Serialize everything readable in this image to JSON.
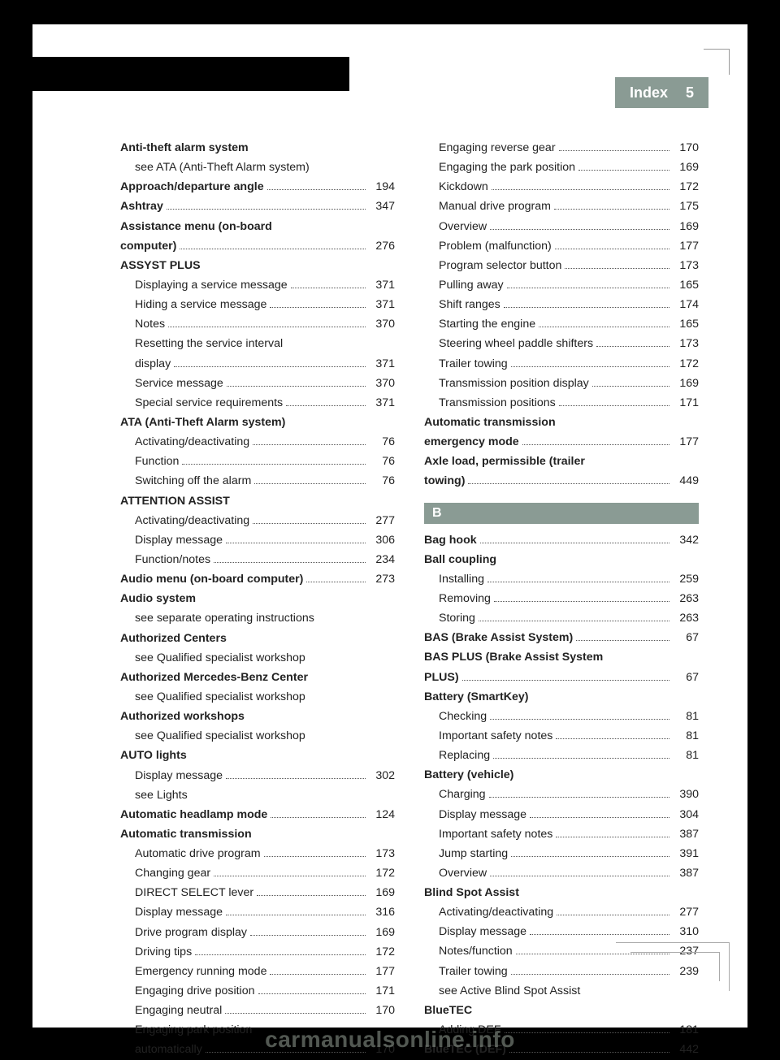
{
  "header": {
    "title": "Index",
    "page_number": "5"
  },
  "section_letter": "B",
  "watermark": "carmanualsonline.info",
  "colors": {
    "tab_bg": "#8a9b94",
    "tab_fg": "#ffffff",
    "page_bg": "#ffffff",
    "outer_bg": "#000000",
    "text": "#222222",
    "dots": "#555555",
    "corner": "#999999"
  },
  "left_column": [
    {
      "label": "Anti-theft alarm system",
      "bold": true
    },
    {
      "label": "see ATA (Anti-Theft Alarm system)",
      "indent": true
    },
    {
      "label": "Approach/departure angle",
      "bold": true,
      "page": "194"
    },
    {
      "label": "Ashtray",
      "bold": true,
      "page": "347"
    },
    {
      "label": "Assistance menu (on-board",
      "bold": true,
      "nowrap": true
    },
    {
      "label": "computer)",
      "bold": true,
      "page": "276"
    },
    {
      "label": "ASSYST PLUS",
      "bold": true
    },
    {
      "label": "Displaying a service message",
      "indent": true,
      "page": "371"
    },
    {
      "label": "Hiding a service message",
      "indent": true,
      "page": "371"
    },
    {
      "label": "Notes",
      "indent": true,
      "page": "370"
    },
    {
      "label": "Resetting the service interval",
      "indent": true,
      "nowrap": true
    },
    {
      "label": "display",
      "indent": true,
      "page": "371"
    },
    {
      "label": "Service message",
      "indent": true,
      "page": "370"
    },
    {
      "label": "Special service requirements",
      "indent": true,
      "page": "371"
    },
    {
      "label": "ATA (Anti-Theft Alarm system)",
      "bold": true
    },
    {
      "label": "Activating/deactivating",
      "indent": true,
      "page": "76"
    },
    {
      "label": "Function",
      "indent": true,
      "page": "76"
    },
    {
      "label": "Switching off the alarm",
      "indent": true,
      "page": "76"
    },
    {
      "label": "ATTENTION ASSIST",
      "bold": true
    },
    {
      "label": "Activating/deactivating",
      "indent": true,
      "page": "277"
    },
    {
      "label": "Display message",
      "indent": true,
      "page": "306"
    },
    {
      "label": "Function/notes",
      "indent": true,
      "page": "234"
    },
    {
      "label": "Audio menu (on-board computer)",
      "bold": true,
      "page": "273"
    },
    {
      "label": "Audio system",
      "bold": true
    },
    {
      "label": "see separate operating instructions",
      "indent": true
    },
    {
      "label": "Authorized Centers",
      "bold": true
    },
    {
      "label": "see Qualified specialist workshop",
      "indent": true
    },
    {
      "label": "Authorized Mercedes-Benz Center",
      "bold": true
    },
    {
      "label": "see Qualified specialist workshop",
      "indent": true
    },
    {
      "label": "Authorized workshops",
      "bold": true
    },
    {
      "label": "see Qualified specialist workshop",
      "indent": true
    },
    {
      "label": "AUTO lights",
      "bold": true
    },
    {
      "label": "Display message",
      "indent": true,
      "page": "302"
    },
    {
      "label": "see Lights",
      "indent": true
    },
    {
      "label": "Automatic headlamp mode",
      "bold": true,
      "page": "124"
    },
    {
      "label": "Automatic transmission",
      "bold": true
    },
    {
      "label": "Automatic drive program",
      "indent": true,
      "page": "173"
    },
    {
      "label": "Changing gear",
      "indent": true,
      "page": "172"
    },
    {
      "label": "DIRECT SELECT lever",
      "indent": true,
      "page": "169"
    },
    {
      "label": "Display message",
      "indent": true,
      "page": "316"
    },
    {
      "label": "Drive program display",
      "indent": true,
      "page": "169"
    },
    {
      "label": "Driving tips",
      "indent": true,
      "page": "172"
    },
    {
      "label": "Emergency running mode",
      "indent": true,
      "page": "177"
    },
    {
      "label": "Engaging drive position",
      "indent": true,
      "page": "171"
    },
    {
      "label": "Engaging neutral",
      "indent": true,
      "page": "170"
    },
    {
      "label": "Engaging park position",
      "indent": true,
      "nowrap": true
    },
    {
      "label": "automatically",
      "indent": true,
      "page": "170"
    }
  ],
  "right_column_a": [
    {
      "label": "Engaging reverse gear",
      "indent": true,
      "page": "170"
    },
    {
      "label": "Engaging the park position",
      "indent": true,
      "page": "169"
    },
    {
      "label": "Kickdown",
      "indent": true,
      "page": "172"
    },
    {
      "label": "Manual drive program",
      "indent": true,
      "page": "175"
    },
    {
      "label": "Overview",
      "indent": true,
      "page": "169"
    },
    {
      "label": "Problem (malfunction)",
      "indent": true,
      "page": "177"
    },
    {
      "label": "Program selector button",
      "indent": true,
      "page": "173"
    },
    {
      "label": "Pulling away",
      "indent": true,
      "page": "165"
    },
    {
      "label": "Shift ranges",
      "indent": true,
      "page": "174"
    },
    {
      "label": "Starting the engine",
      "indent": true,
      "page": "165"
    },
    {
      "label": "Steering wheel paddle shifters",
      "indent": true,
      "page": "173"
    },
    {
      "label": "Trailer towing",
      "indent": true,
      "page": "172"
    },
    {
      "label": "Transmission position display",
      "indent": true,
      "page": "169"
    },
    {
      "label": "Transmission positions",
      "indent": true,
      "page": "171"
    },
    {
      "label": "Automatic transmission",
      "bold": true,
      "nowrap": true
    },
    {
      "label": "emergency mode",
      "bold": true,
      "page": "177"
    },
    {
      "label": "Axle load, permissible (trailer",
      "bold": true,
      "nowrap": true
    },
    {
      "label": "towing)",
      "bold": true,
      "page": "449"
    }
  ],
  "right_column_b": [
    {
      "label": "Bag hook",
      "bold": true,
      "page": "342"
    },
    {
      "label": "Ball coupling",
      "bold": true
    },
    {
      "label": "Installing",
      "indent": true,
      "page": "259"
    },
    {
      "label": "Removing",
      "indent": true,
      "page": "263"
    },
    {
      "label": "Storing",
      "indent": true,
      "page": "263"
    },
    {
      "label": "BAS (Brake Assist System)",
      "bold": true,
      "page": "67"
    },
    {
      "label": "BAS PLUS (Brake Assist System",
      "bold": true,
      "nowrap": true
    },
    {
      "label": "PLUS)",
      "bold": true,
      "page": "67"
    },
    {
      "label": "Battery (SmartKey)",
      "bold": true
    },
    {
      "label": "Checking",
      "indent": true,
      "page": "81"
    },
    {
      "label": "Important safety notes",
      "indent": true,
      "page": "81"
    },
    {
      "label": "Replacing",
      "indent": true,
      "page": "81"
    },
    {
      "label": "Battery (vehicle)",
      "bold": true
    },
    {
      "label": "Charging",
      "indent": true,
      "page": "390"
    },
    {
      "label": "Display message",
      "indent": true,
      "page": "304"
    },
    {
      "label": "Important safety notes",
      "indent": true,
      "page": "387"
    },
    {
      "label": "Jump starting",
      "indent": true,
      "page": "391"
    },
    {
      "label": "Overview",
      "indent": true,
      "page": "387"
    },
    {
      "label": "Blind Spot Assist",
      "bold": true
    },
    {
      "label": "Activating/deactivating",
      "indent": true,
      "page": "277"
    },
    {
      "label": "Display message",
      "indent": true,
      "page": "310"
    },
    {
      "label": "Notes/function",
      "indent": true,
      "page": "237"
    },
    {
      "label": "Trailer towing",
      "indent": true,
      "page": "239"
    },
    {
      "label": "see Active Blind Spot Assist",
      "indent": true
    },
    {
      "label": "BlueTEC",
      "bold": true
    },
    {
      "label": "Adding DEF",
      "indent": true,
      "page": "181"
    },
    {
      "label": "BlueTEC (DEF)",
      "bold": true,
      "page": "442"
    }
  ]
}
